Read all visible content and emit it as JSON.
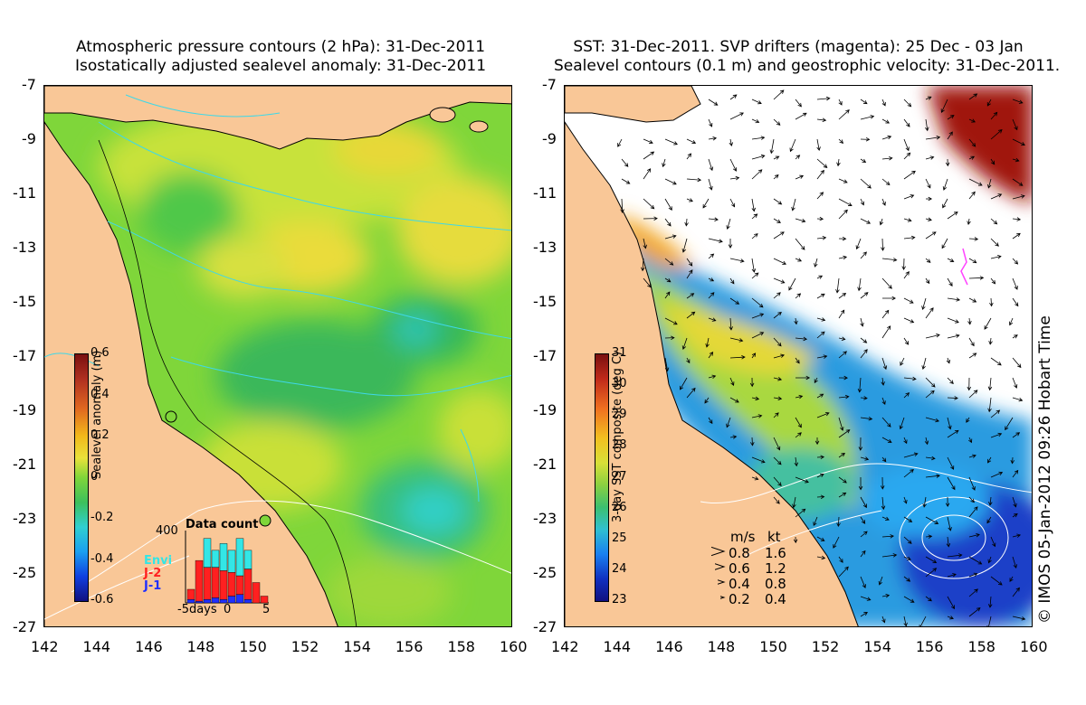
{
  "left_panel": {
    "title_line1": "Atmospheric pressure contours (2 hPa): 31-Dec-2011",
    "title_line2": "Isostatically adjusted sealevel anomaly: 31-Dec-2011",
    "colorbar": {
      "label": "Sealevel anomaly (m)",
      "ticks": [
        "0.6",
        "0.4",
        "0.2",
        "0",
        "-0.2",
        "-0.4",
        "-0.6"
      ],
      "range": [
        -0.6,
        0.6
      ]
    },
    "data_count": {
      "title": "Data count",
      "y_tick": "400",
      "x_ticks": [
        "-5days",
        "0",
        "5"
      ],
      "legend": [
        {
          "label": "Envi",
          "color": "#33e6e6"
        },
        {
          "label": "J-2",
          "color": "#ff2020"
        },
        {
          "label": "J-1",
          "color": "#2030ff"
        }
      ],
      "chart_data": {
        "type": "bar",
        "x": [
          -5,
          -4,
          -3,
          -2,
          -1,
          0,
          1,
          2,
          3,
          4
        ],
        "series": [
          {
            "name": "J-1",
            "values": [
              20,
              10,
              20,
              30,
              20,
              40,
              50,
              20,
              0,
              0
            ]
          },
          {
            "name": "J-2",
            "values": [
              60,
              240,
              190,
              180,
              170,
              140,
              110,
              180,
              120,
              40
            ]
          },
          {
            "name": "Envi",
            "values": [
              0,
              0,
              170,
              100,
              160,
              130,
              220,
              110,
              0,
              0
            ]
          }
        ]
      }
    }
  },
  "right_panel": {
    "title_line1": "SST: 31-Dec-2011. SVP drifters (magenta): 25 Dec - 03 Jan",
    "title_line2": "Sealevel contours (0.1 m) and geostrophic velocity: 31-Dec-2011.",
    "colorbar": {
      "label": "3-day SST composite (deg C)",
      "ticks": [
        "31",
        "30",
        "29",
        "28",
        "27",
        "26",
        "25",
        "24",
        "23"
      ],
      "range": [
        23,
        31
      ]
    },
    "velocity_legend": {
      "header_ms": "m/s",
      "header_kt": "kt",
      "rows": [
        {
          "ms": "0.8",
          "kt": "1.6"
        },
        {
          "ms": "0.6",
          "kt": "1.2"
        },
        {
          "ms": "0.4",
          "kt": "0.8"
        },
        {
          "ms": "0.2",
          "kt": "0.4"
        }
      ]
    },
    "credit": "© IMOS 05-Jan-2012 09:26 Hobart Time"
  },
  "axes": {
    "y_ticks": [
      "-7",
      "-9",
      "-11",
      "-13",
      "-15",
      "-17",
      "-19",
      "-21",
      "-23",
      "-25",
      "-27"
    ],
    "x_ticks": [
      "142",
      "144",
      "146",
      "148",
      "150",
      "152",
      "154",
      "156",
      "158",
      "160"
    ],
    "lat_range": [
      -27,
      -7
    ],
    "lon_range": [
      142,
      160
    ]
  },
  "colors": {
    "land": "#f9c797",
    "coast": "#000000",
    "pressure_contour": "#3fd8e8",
    "sealevel_contour": "#ffffff",
    "drifter": "#ff44ff"
  }
}
